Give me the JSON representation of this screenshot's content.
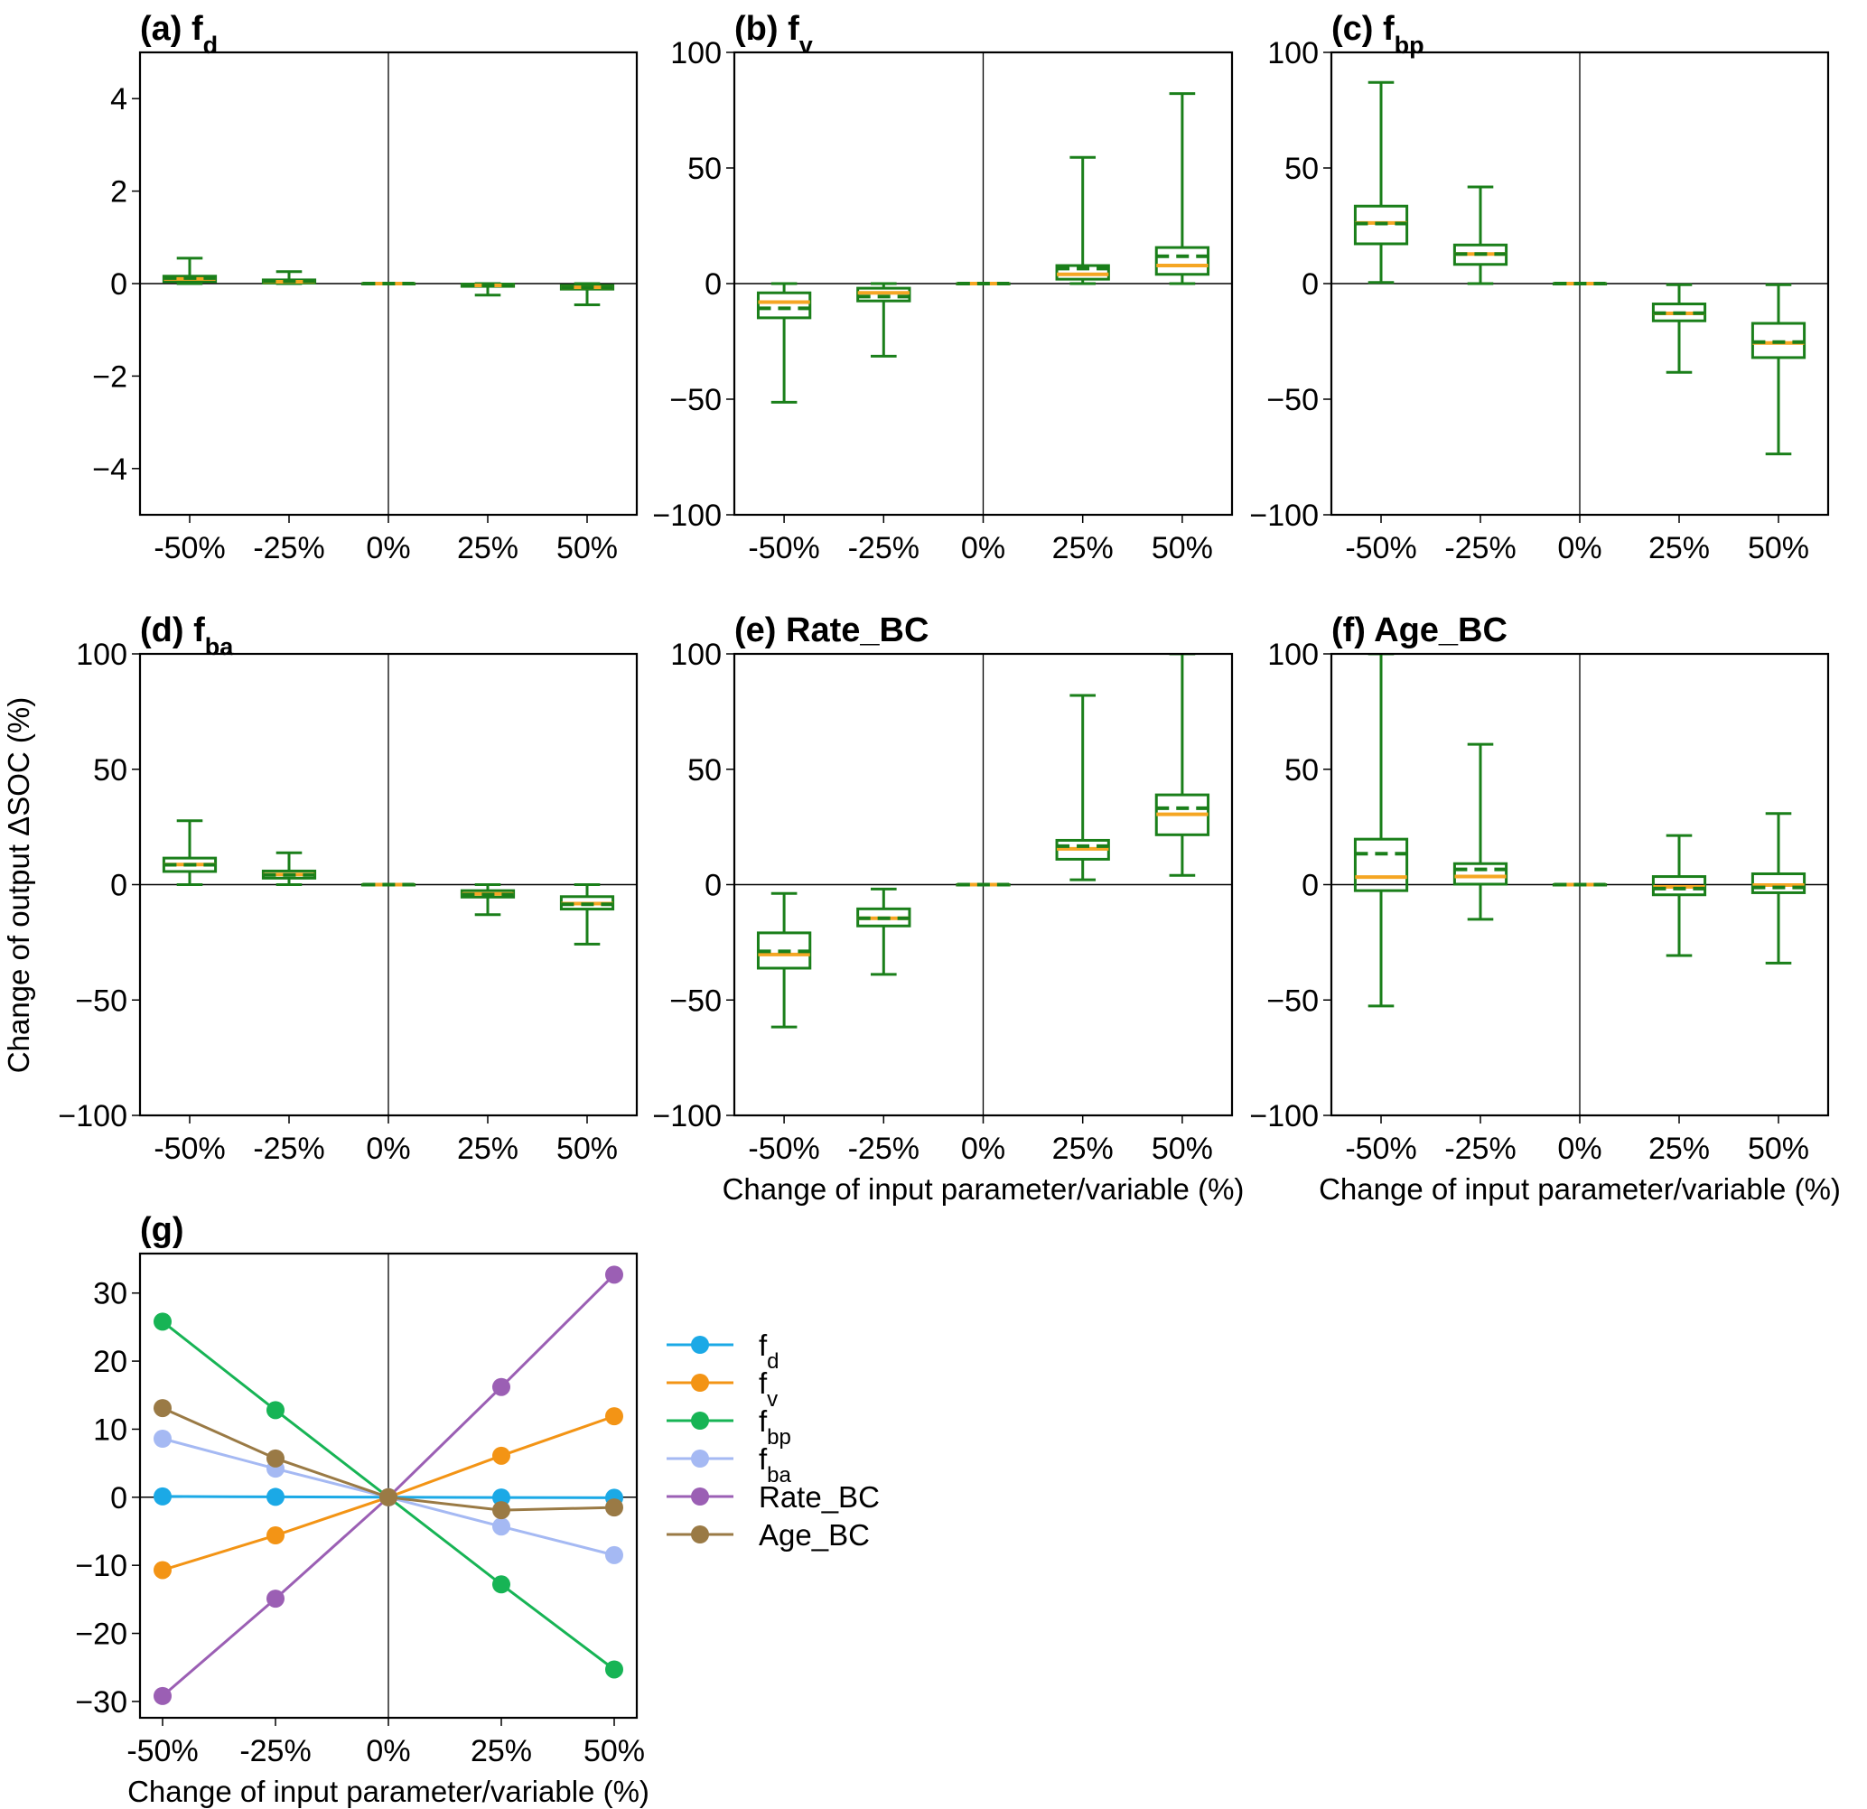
{
  "figure": {
    "ylabel_shared": "Change of output ΔSOC (%)",
    "xlabel_shared": "Change of input parameter/variable (%)"
  },
  "colors": {
    "box": "#1a7f1a",
    "median": "#f5a623",
    "mean_dash": "#1a7f1a",
    "axis": "#000000"
  },
  "chart_data": [
    {
      "id": "a",
      "type": "box",
      "title_prefix": "(a) ",
      "title_main": "f",
      "title_sub": "d",
      "categories": [
        "-50%",
        "-25%",
        "0%",
        "25%",
        "50%"
      ],
      "ylim": [
        -5,
        5
      ],
      "yticks": [
        -4,
        -2,
        0,
        2,
        4
      ],
      "ytick_labels": [
        "−4",
        "−2",
        "0",
        "2",
        "4"
      ],
      "xlabel": "",
      "ylabel": "",
      "boxes": [
        {
          "whislo": 0.0,
          "q1": 0.04,
          "med": 0.1,
          "mean": 0.12,
          "q3": 0.16,
          "whishi": 0.55
        },
        {
          "whislo": 0.0,
          "q1": 0.01,
          "med": 0.04,
          "mean": 0.05,
          "q3": 0.08,
          "whishi": 0.26
        },
        {
          "whislo": 0.0,
          "q1": 0.0,
          "med": 0.0,
          "mean": 0.0,
          "q3": 0.0,
          "whishi": 0.0
        },
        {
          "whislo": -0.25,
          "q1": -0.06,
          "med": -0.04,
          "mean": -0.04,
          "q3": -0.01,
          "whishi": 0.0
        },
        {
          "whislo": -0.46,
          "q1": -0.12,
          "med": -0.08,
          "mean": -0.08,
          "q3": -0.04,
          "whishi": 0.0
        }
      ]
    },
    {
      "id": "b",
      "type": "box",
      "title_prefix": "(b) ",
      "title_main": "f",
      "title_sub": "v",
      "categories": [
        "-50%",
        "-25%",
        "0%",
        "25%",
        "50%"
      ],
      "ylim": [
        -100,
        100
      ],
      "yticks": [
        -100,
        -50,
        0,
        50,
        100
      ],
      "ytick_labels": [
        "−100",
        "−50",
        "0",
        "50",
        "100"
      ],
      "xlabel": "",
      "ylabel": "",
      "boxes": [
        {
          "whislo": -51.3,
          "q1": -14.8,
          "med": -8.0,
          "mean": -10.7,
          "q3": -4.0,
          "whishi": 0.0
        },
        {
          "whislo": -31.4,
          "q1": -7.5,
          "med": -4.0,
          "mean": -5.6,
          "q3": -2.0,
          "whishi": 0.0
        },
        {
          "whislo": 0.0,
          "q1": 0.0,
          "med": 0.0,
          "mean": 0.0,
          "q3": 0.0,
          "whishi": 0.0
        },
        {
          "whislo": 0.0,
          "q1": 1.9,
          "med": 4.0,
          "mean": 6.5,
          "q3": 7.8,
          "whishi": 54.6
        },
        {
          "whislo": 0.0,
          "q1": 4.0,
          "med": 7.8,
          "mean": 11.8,
          "q3": 15.6,
          "whishi": 82.2
        }
      ]
    },
    {
      "id": "c",
      "type": "box",
      "title_prefix": "(c) ",
      "title_main": "f",
      "title_sub": "bp",
      "categories": [
        "-50%",
        "-25%",
        "0%",
        "25%",
        "50%"
      ],
      "ylim": [
        -100,
        100
      ],
      "yticks": [
        -100,
        -50,
        0,
        50,
        100
      ],
      "ytick_labels": [
        "−100",
        "−50",
        "0",
        "50",
        "100"
      ],
      "xlabel": "",
      "ylabel": "",
      "boxes": [
        {
          "whislo": 0.5,
          "q1": 17.2,
          "med": 26.2,
          "mean": 26.0,
          "q3": 33.5,
          "whishi": 87.0
        },
        {
          "whislo": 0.0,
          "q1": 8.3,
          "med": 12.8,
          "mean": 12.8,
          "q3": 16.7,
          "whishi": 41.8
        },
        {
          "whislo": 0.0,
          "q1": 0.0,
          "med": 0.0,
          "mean": 0.0,
          "q3": 0.0,
          "whishi": 0.0
        },
        {
          "whislo": -38.4,
          "q1": -16.1,
          "med": -12.9,
          "mean": -12.8,
          "q3": -8.8,
          "whishi": -0.5
        },
        {
          "whislo": -73.7,
          "q1": -32.0,
          "med": -25.7,
          "mean": -25.3,
          "q3": -17.2,
          "whishi": -0.5
        }
      ]
    },
    {
      "id": "d",
      "type": "box",
      "title_prefix": "(d) ",
      "title_main": "f",
      "title_sub": "ba",
      "categories": [
        "-50%",
        "-25%",
        "0%",
        "25%",
        "50%"
      ],
      "ylim": [
        -100,
        100
      ],
      "yticks": [
        -100,
        -50,
        0,
        50,
        100
      ],
      "ytick_labels": [
        "−100",
        "−50",
        "0",
        "50",
        "100"
      ],
      "xlabel": "",
      "ylabel": "Change of output ΔSOC (%)",
      "boxes": [
        {
          "whislo": 0.0,
          "q1": 5.7,
          "med": 8.7,
          "mean": 8.6,
          "q3": 11.5,
          "whishi": 27.7
        },
        {
          "whislo": 0.0,
          "q1": 2.8,
          "med": 4.4,
          "mean": 4.2,
          "q3": 5.9,
          "whishi": 13.8
        },
        {
          "whislo": 0.0,
          "q1": 0.0,
          "med": 0.0,
          "mean": 0.0,
          "q3": 0.0,
          "whishi": 0.0
        },
        {
          "whislo": -13.0,
          "q1": -5.4,
          "med": -4.0,
          "mean": -4.3,
          "q3": -2.6,
          "whishi": 0.0
        },
        {
          "whislo": -25.8,
          "q1": -10.6,
          "med": -8.2,
          "mean": -8.5,
          "q3": -5.2,
          "whishi": 0.0
        }
      ]
    },
    {
      "id": "e",
      "type": "box",
      "title_prefix": "(e) ",
      "title_main": "Rate_BC",
      "title_sub": "",
      "categories": [
        "-50%",
        "-25%",
        "0%",
        "25%",
        "50%"
      ],
      "ylim": [
        -100,
        100
      ],
      "yticks": [
        -100,
        -50,
        0,
        50,
        100
      ],
      "ytick_labels": [
        "−100",
        "−50",
        "0",
        "50",
        "100"
      ],
      "xlabel": "Change of input parameter/variable (%)",
      "ylabel": "",
      "boxes": [
        {
          "whislo": -61.7,
          "q1": -36.2,
          "med": -30.3,
          "mean": -28.9,
          "q3": -20.9,
          "whishi": -3.8
        },
        {
          "whislo": -38.9,
          "q1": -17.9,
          "med": -14.6,
          "mean": -14.6,
          "q3": -10.5,
          "whishi": -1.9
        },
        {
          "whislo": 0.0,
          "q1": 0.0,
          "med": 0.0,
          "mean": 0.0,
          "q3": 0.0,
          "whishi": 0.0
        },
        {
          "whislo": 2.1,
          "q1": 11.0,
          "med": 15.5,
          "mean": 16.7,
          "q3": 19.2,
          "whishi": 82.0
        },
        {
          "whislo": 4.0,
          "q1": 21.6,
          "med": 30.5,
          "mean": 33.1,
          "q3": 38.9,
          "whishi": 100.0
        }
      ]
    },
    {
      "id": "f",
      "type": "box",
      "title_prefix": "(f) ",
      "title_main": "Age_BC",
      "title_sub": "",
      "categories": [
        "-50%",
        "-25%",
        "0%",
        "25%",
        "50%"
      ],
      "ylim": [
        -100,
        100
      ],
      "yticks": [
        -100,
        -50,
        0,
        50,
        100
      ],
      "ytick_labels": [
        "−100",
        "−50",
        "0",
        "50",
        "100"
      ],
      "xlabel": "Change of input parameter/variable (%)",
      "ylabel": "",
      "boxes": [
        {
          "whislo": -52.6,
          "q1": -2.6,
          "med": 3.3,
          "mean": 13.4,
          "q3": 19.7,
          "whishi": 100.0
        },
        {
          "whislo": -15.0,
          "q1": 0.2,
          "med": 3.5,
          "mean": 6.6,
          "q3": 9.1,
          "whishi": 60.8
        },
        {
          "whislo": 0.0,
          "q1": 0.0,
          "med": 0.0,
          "mean": 0.0,
          "q3": 0.0,
          "whishi": 0.0
        },
        {
          "whislo": -30.7,
          "q1": -4.4,
          "med": -1.0,
          "mean": -1.7,
          "q3": 3.5,
          "whishi": 21.3
        },
        {
          "whislo": -34.0,
          "q1": -3.5,
          "med": -0.2,
          "mean": -1.2,
          "q3": 4.7,
          "whishi": 30.8
        }
      ]
    },
    {
      "id": "g",
      "type": "line",
      "title_prefix": "(g)",
      "title_main": "",
      "title_sub": "",
      "categories": [
        "-50%",
        "-25%",
        "0%",
        "25%",
        "50%"
      ],
      "ylim": [
        -32.4,
        35.8
      ],
      "yticks": [
        -30,
        -20,
        -10,
        0,
        10,
        20,
        30
      ],
      "ytick_labels": [
        "−30",
        "−20",
        "−10",
        "0",
        "10",
        "20",
        "30"
      ],
      "xlabel": "Change of input parameter/variable (%)",
      "ylabel": "",
      "legend_position": "right",
      "series": [
        {
          "name": "f",
          "sub": "d",
          "color": "#1ba9e6",
          "values": [
            0.12,
            0.05,
            0.0,
            -0.04,
            -0.08
          ]
        },
        {
          "name": "f",
          "sub": "v",
          "color": "#f39415",
          "values": [
            -10.7,
            -5.6,
            0.0,
            6.1,
            11.9
          ]
        },
        {
          "name": "f",
          "sub": "bp",
          "color": "#17b455",
          "values": [
            25.8,
            12.8,
            0.0,
            -12.8,
            -25.3
          ]
        },
        {
          "name": "f",
          "sub": "ba",
          "color": "#a5b9f3",
          "values": [
            8.6,
            4.2,
            0.0,
            -4.3,
            -8.5
          ]
        },
        {
          "name": "Rate_BC",
          "sub": "",
          "color": "#9b5fb4",
          "values": [
            -29.2,
            -14.9,
            0.0,
            16.2,
            32.7
          ]
        },
        {
          "name": "Age_BC",
          "sub": "",
          "color": "#9a7a45",
          "values": [
            13.1,
            5.7,
            0.0,
            -1.9,
            -1.5
          ]
        }
      ]
    }
  ]
}
